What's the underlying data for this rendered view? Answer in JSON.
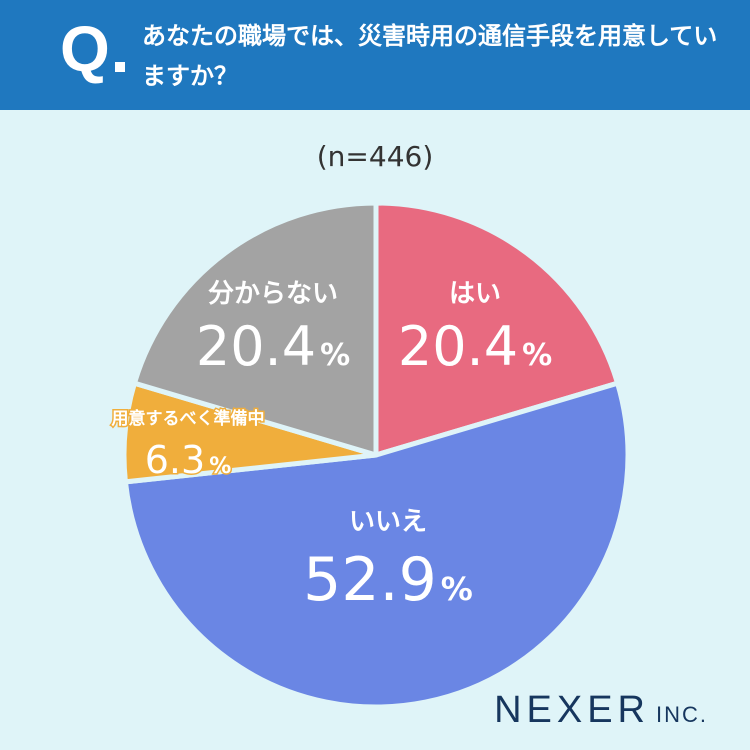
{
  "header": {
    "q_letter": "Q",
    "question": "あなたの職場では、災害時用の通信手段を用意していますか？",
    "bg_color": "#1f78bf"
  },
  "sample_size": "(n=446)",
  "brand": {
    "main": "NEXER",
    "sub": "INC."
  },
  "chart_data": {
    "type": "pie",
    "start": "top",
    "direction": "clockwise",
    "slices": [
      {
        "label": "はい",
        "value": 20.4,
        "display": "20.4",
        "unit": "%",
        "color": "#e86a80"
      },
      {
        "label": "いいえ",
        "value": 52.9,
        "display": "52.9",
        "unit": "%",
        "color": "#6a86e4"
      },
      {
        "label": "用意するべく準備中",
        "value": 6.3,
        "display": "6.3",
        "unit": "%",
        "color": "#f0ae3c"
      },
      {
        "label": "分からない",
        "value": 20.4,
        "display": "20.4",
        "unit": "%",
        "color": "#a3a3a3"
      }
    ]
  }
}
